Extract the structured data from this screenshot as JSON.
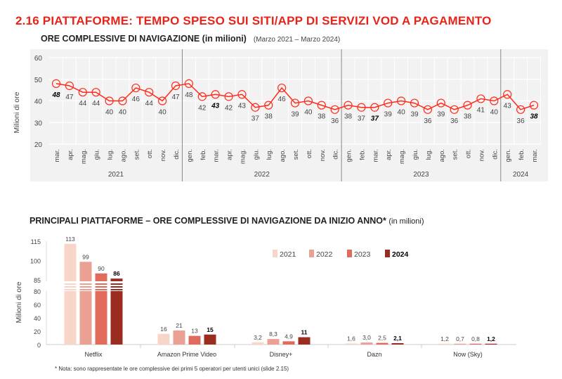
{
  "title": "2.16 PIATTAFORME: TEMPO SPESO SUI SITI/APP DI  SERVIZI VOD A PAGAMENTO",
  "colors": {
    "accent": "#e8241a",
    "line": "#ff2a1a",
    "y2021": "#f8d5c9",
    "y2022": "#eaa093",
    "y2023": "#e06b5d",
    "y2024": "#9b2c20"
  },
  "chart_data": [
    {
      "type": "line",
      "title": "ORE COMPLESSIVE DI NAVIGAZIONE (in milioni)",
      "subtitle": "(Marzo 2021 – Marzo 2024)",
      "ylabel": "Milioni di ore",
      "ylim": [
        20,
        60
      ],
      "yticks": [
        20,
        30,
        40,
        50,
        60
      ],
      "grid": true,
      "x": [
        "mar.",
        "apr.",
        "mag.",
        "giu.",
        "lug.",
        "ago.",
        "set.",
        "ott.",
        "nov.",
        "dic.",
        "gen.",
        "feb.",
        "mar.",
        "apr.",
        "mag.",
        "giu.",
        "lug.",
        "ago.",
        "set.",
        "ott.",
        "nov.",
        "dic.",
        "gen.",
        "feb.",
        "mar.",
        "apr.",
        "mag.",
        "giu.",
        "lug.",
        "ago.",
        "set.",
        "ott.",
        "nov.",
        "dic.",
        "gen.",
        "feb.",
        "mar."
      ],
      "years": [
        {
          "label": "2021",
          "count": 10
        },
        {
          "label": "2022",
          "count": 12
        },
        {
          "label": "2023",
          "count": 12
        },
        {
          "label": "2024",
          "count": 3
        }
      ],
      "values": [
        48,
        47,
        44,
        44,
        40,
        40,
        46,
        44,
        40,
        47,
        48,
        42,
        43,
        42,
        43,
        37,
        38,
        46,
        39,
        40,
        38,
        36,
        38,
        37,
        37,
        39,
        40,
        39,
        36,
        39,
        36,
        38,
        41,
        40,
        43,
        36,
        38
      ],
      "highlighted": [
        0,
        12,
        24,
        36
      ]
    },
    {
      "type": "bar",
      "title": "PRINCIPALI PIATTAFORME – ORE COMPLESSIVE DI NAVIGAZIONE DA INIZIO ANNO*",
      "title_unit": "(in milioni)",
      "ylabel": "Milioni di ore",
      "yticks": [
        0,
        20,
        40,
        60,
        80,
        85,
        100,
        115
      ],
      "axis_break": [
        80,
        85
      ],
      "legend_position": "top-right",
      "categories": [
        "Netflix",
        "Amazon Prime Video",
        "Disney+",
        "Dazn",
        "Now (Sky)"
      ],
      "series": [
        {
          "name": "2021",
          "values": [
            113,
            16,
            3.2,
            1.6,
            1.2
          ],
          "labels": [
            "113",
            "16",
            "3,2",
            "1,6",
            "1,2"
          ]
        },
        {
          "name": "2022",
          "values": [
            99,
            21,
            8.3,
            3.0,
            0.7
          ],
          "labels": [
            "99",
            "21",
            "8,3",
            "3,0",
            "0,7"
          ]
        },
        {
          "name": "2023",
          "values": [
            90,
            13,
            4.9,
            2.5,
            0.8
          ],
          "labels": [
            "90",
            "13",
            "4,9",
            "2,5",
            "0,8"
          ]
        },
        {
          "name": "2024",
          "values": [
            86,
            15,
            11,
            2.1,
            1.2
          ],
          "labels": [
            "86",
            "15",
            "11",
            "2,1",
            "1,2"
          ]
        }
      ]
    }
  ],
  "note": "* Nota: sono rappresentate le ore complessive dei primi 5 operatori per utenti unici (slide 2.15)"
}
